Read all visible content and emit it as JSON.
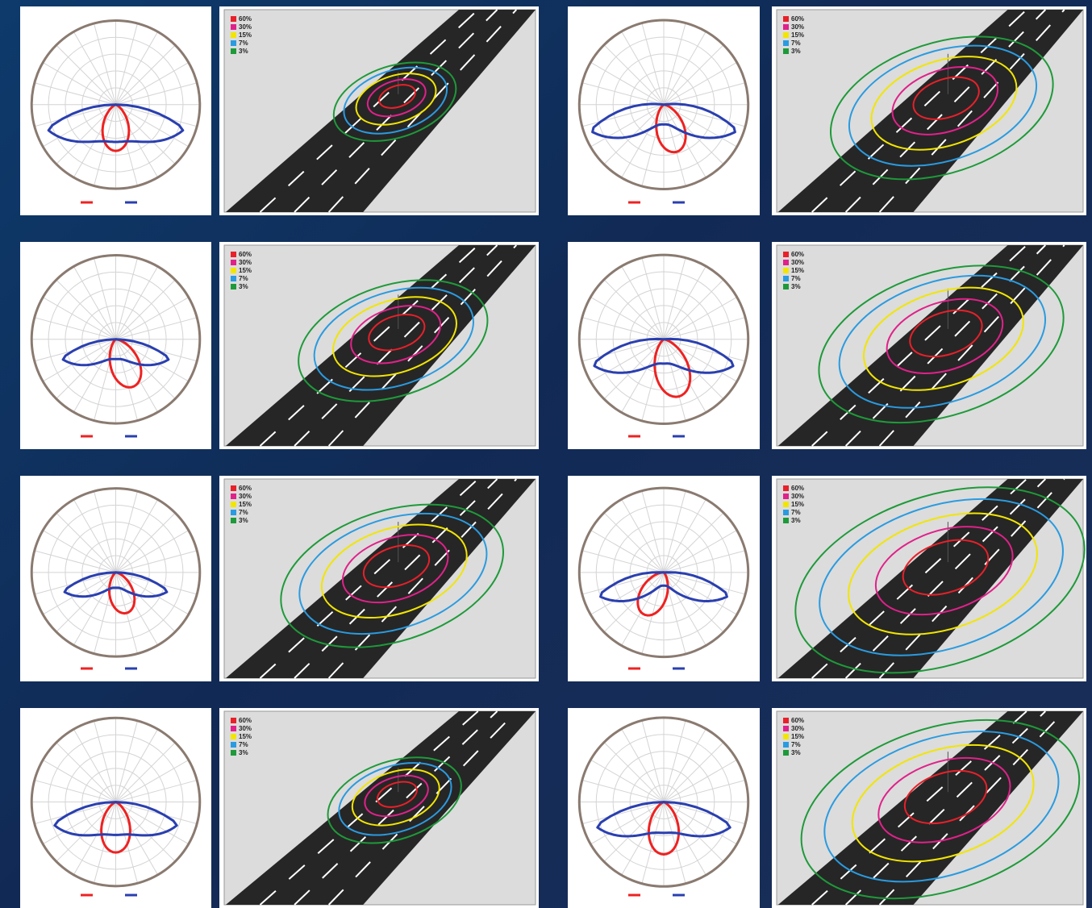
{
  "isolux_legend": [
    {
      "label": "60%",
      "color": "#e8202a"
    },
    {
      "label": "30%",
      "color": "#e0218a"
    },
    {
      "label": "15%",
      "color": "#f2e500"
    },
    {
      "label": "7%",
      "color": "#2a9be0"
    },
    {
      "label": "3%",
      "color": "#1e9a3a"
    }
  ]
}
